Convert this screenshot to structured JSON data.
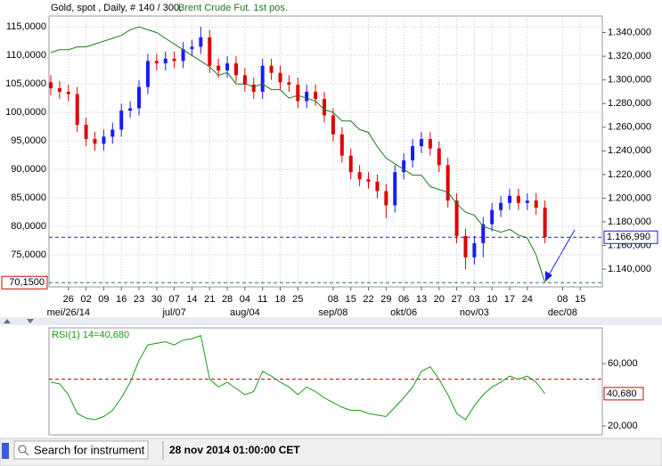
{
  "chart_data": [
    {
      "type": "candlestick",
      "title": "Gold, spot , Daily, # 140 / 300,",
      "x": [
        -1,
        -0.5,
        0,
        0.5,
        1,
        1.5,
        2,
        2.5,
        3,
        3.5,
        4,
        4.5,
        5,
        5.5,
        6,
        6.5,
        7,
        7.5,
        8,
        8.5,
        9,
        9.5,
        10,
        10.5,
        11,
        11.5,
        12,
        12.5,
        13,
        13.5,
        14,
        14.5,
        15,
        15.5,
        16,
        16.5,
        17,
        17.5,
        18,
        18.5,
        19,
        19.5,
        20,
        20.5,
        21,
        21.5,
        22,
        22.5,
        23,
        23.5,
        24,
        24.5,
        25,
        25.5,
        26,
        26.5,
        27
      ],
      "xlim": [
        -1.1,
        30.25
      ],
      "xticks": [
        {
          "value": 0,
          "label": "26"
        },
        {
          "value": 1,
          "label": "02"
        },
        {
          "value": 2,
          "label": "09"
        },
        {
          "value": 3,
          "label": "16"
        },
        {
          "value": 4,
          "label": "23"
        },
        {
          "value": 5,
          "label": "30"
        },
        {
          "value": 6,
          "label": "07"
        },
        {
          "value": 7,
          "label": "14"
        },
        {
          "value": 8,
          "label": "21"
        },
        {
          "value": 9,
          "label": "28"
        },
        {
          "value": 10,
          "label": "04"
        },
        {
          "value": 11,
          "label": "11"
        },
        {
          "value": 12,
          "label": "18"
        },
        {
          "value": 13,
          "label": "25"
        },
        {
          "value": 15,
          "label": "08"
        },
        {
          "value": 16,
          "label": "15"
        },
        {
          "value": 17,
          "label": "22"
        },
        {
          "value": 18,
          "label": "29"
        },
        {
          "value": 19,
          "label": "06"
        },
        {
          "value": 20,
          "label": "13"
        },
        {
          "value": 21,
          "label": "20"
        },
        {
          "value": 22,
          "label": "27"
        },
        {
          "value": 23,
          "label": "03"
        },
        {
          "value": 24,
          "label": "10"
        },
        {
          "value": 25,
          "label": "17"
        },
        {
          "value": 26,
          "label": "24"
        },
        {
          "value": 28,
          "label": "08"
        },
        {
          "value": 29,
          "label": "15"
        }
      ],
      "period_ticks": [
        {
          "value": 0,
          "label": "mei/26/14"
        },
        {
          "value": 6,
          "label": "jul/07"
        },
        {
          "value": 10,
          "label": "aug/04"
        },
        {
          "value": 15,
          "label": "sep/08"
        },
        {
          "value": 19,
          "label": "okt/06"
        },
        {
          "value": 23,
          "label": "nov/03"
        },
        {
          "value": 28,
          "label": "dec/08"
        }
      ],
      "ylim": [
        69.4,
        116.9
      ],
      "yticks": [
        {
          "value": 115,
          "label": "115,0000"
        },
        {
          "value": 110,
          "label": "110,0000"
        },
        {
          "value": 105,
          "label": "105,0000"
        },
        {
          "value": 100,
          "label": "100,0000"
        },
        {
          "value": 95,
          "label": "95,0000"
        },
        {
          "value": 90,
          "label": "90,0000"
        },
        {
          "value": 85,
          "label": "85,0000"
        },
        {
          "value": 80,
          "label": "80,0000"
        },
        {
          "value": 75,
          "label": "75,0000"
        }
      ],
      "y2lim": [
        1125,
        1354
      ],
      "y2ticks": [
        {
          "value": 1340,
          "label": "1.340,000"
        },
        {
          "value": 1320,
          "label": "1.320,000"
        },
        {
          "value": 1300,
          "label": "1.300,000"
        },
        {
          "value": 1280,
          "label": "1.280,000"
        },
        {
          "value": 1260,
          "label": "1.260,000"
        },
        {
          "value": 1240,
          "label": "1.240,000"
        },
        {
          "value": 1220,
          "label": "1.220,000"
        },
        {
          "value": 1200,
          "label": "1.200,000"
        },
        {
          "value": 1180,
          "label": "1.180,000"
        },
        {
          "value": 1160,
          "label": "1.160,000"
        },
        {
          "value": 1140,
          "label": "1.140,000"
        }
      ],
      "grid": true,
      "candles": {
        "axis": "y2",
        "up_color": "#1a1aff",
        "down_color": "#e00000",
        "last_color": "#1a1aff",
        "last_label": "1.166,990",
        "open": [
          1298,
          1293,
          1290,
          1288,
          1262,
          1250,
          1246,
          1252,
          1258,
          1274,
          1276,
          1294,
          1316,
          1314,
          1318,
          1316,
          1326,
          1328,
          1336,
          1312,
          1308,
          1314,
          1304,
          1296,
          1290,
          1312,
          1306,
          1298,
          1296,
          1282,
          1290,
          1284,
          1270,
          1254,
          1236,
          1222,
          1216,
          1214,
          1206,
          1194,
          1222,
          1232,
          1244,
          1250,
          1242,
          1228,
          1198,
          1168,
          1150,
          1162,
          1178,
          1190,
          1196,
          1202,
          1196,
          1198,
          1192
        ],
        "high": [
          1304,
          1299,
          1296,
          1294,
          1268,
          1256,
          1258,
          1264,
          1280,
          1282,
          1300,
          1322,
          1322,
          1324,
          1324,
          1332,
          1334,
          1345,
          1342,
          1318,
          1320,
          1320,
          1310,
          1302,
          1318,
          1318,
          1312,
          1304,
          1302,
          1296,
          1296,
          1290,
          1276,
          1260,
          1242,
          1228,
          1222,
          1220,
          1212,
          1228,
          1238,
          1250,
          1256,
          1256,
          1248,
          1234,
          1204,
          1174,
          1168,
          1184,
          1196,
          1202,
          1208,
          1208,
          1204,
          1204,
          1198
        ],
        "low": [
          1287,
          1284,
          1282,
          1256,
          1244,
          1240,
          1240,
          1246,
          1252,
          1268,
          1270,
          1288,
          1308,
          1308,
          1310,
          1310,
          1320,
          1322,
          1306,
          1302,
          1302,
          1298,
          1290,
          1284,
          1284,
          1300,
          1292,
          1290,
          1276,
          1276,
          1278,
          1264,
          1248,
          1230,
          1216,
          1210,
          1208,
          1200,
          1183,
          1188,
          1216,
          1226,
          1238,
          1236,
          1222,
          1192,
          1162,
          1140,
          1144,
          1150,
          1172,
          1184,
          1190,
          1190,
          1190,
          1186,
          1162
        ],
        "close": [
          1293,
          1290,
          1288,
          1262,
          1250,
          1246,
          1252,
          1258,
          1274,
          1276,
          1294,
          1316,
          1314,
          1318,
          1316,
          1326,
          1328,
          1336,
          1312,
          1308,
          1314,
          1304,
          1296,
          1290,
          1312,
          1306,
          1298,
          1296,
          1282,
          1290,
          1284,
          1270,
          1254,
          1236,
          1222,
          1216,
          1214,
          1206,
          1194,
          1222,
          1232,
          1244,
          1250,
          1242,
          1228,
          1198,
          1168,
          1150,
          1162,
          1178,
          1190,
          1196,
          1202,
          1196,
          1198,
          1192,
          1166.99
        ]
      },
      "line": {
        "name": "Brent Crude Fut. 1st pos.",
        "axis": "y",
        "color": "#1a7a1a",
        "last_color": "#e00000",
        "last_label": "70,1500",
        "values": [
          110.5,
          111,
          111,
          111.5,
          111.5,
          112,
          112.5,
          113,
          113.5,
          114.5,
          115,
          114.5,
          114,
          113,
          112,
          111,
          110,
          109,
          108,
          106.5,
          107,
          105,
          105,
          104.5,
          105,
          104,
          104,
          102.5,
          103,
          102.5,
          102,
          100.5,
          100,
          98.5,
          98.5,
          97,
          96.5,
          94,
          92,
          91,
          90,
          89,
          89,
          87,
          86.5,
          86,
          84,
          82.5,
          82,
          80,
          79.5,
          79,
          79.5,
          78.5,
          78,
          75,
          70.15
        ]
      }
    },
    {
      "type": "line",
      "title": "RSI(1) 14=40,680",
      "color": "#1a9a1a",
      "value_color": "#e00000",
      "x": [
        -1,
        -0.5,
        0,
        0.5,
        1,
        1.5,
        2,
        2.5,
        3,
        3.5,
        4,
        4.5,
        5,
        5.5,
        6,
        6.5,
        7,
        7.5,
        8,
        8.5,
        9,
        9.5,
        10,
        10.5,
        11,
        11.5,
        12,
        12.5,
        13,
        13.5,
        14,
        14.5,
        15,
        15.5,
        16,
        16.5,
        17,
        17.5,
        18,
        18.5,
        19,
        19.5,
        20,
        20.5,
        21,
        21.5,
        22,
        22.5,
        23,
        23.5,
        24,
        24.5,
        25,
        25.5,
        26,
        26.5,
        27
      ],
      "xlim": [
        -1.1,
        30.25
      ],
      "ylim": [
        14.3,
        82.9
      ],
      "yticks": [
        {
          "value": 60,
          "label": "60,000"
        },
        {
          "value": 20,
          "label": "20,000"
        }
      ],
      "reference_line": 50,
      "values": [
        48,
        47,
        40,
        28,
        25,
        24,
        26,
        30,
        38,
        48,
        62,
        72,
        73,
        74,
        72,
        75,
        76,
        78,
        50,
        45,
        48,
        44,
        40,
        42,
        55,
        52,
        48,
        45,
        40,
        45,
        42,
        38,
        35,
        32,
        30,
        30,
        28,
        27,
        26,
        32,
        38,
        45,
        55,
        58,
        50,
        40,
        28,
        24,
        33,
        40,
        45,
        48,
        52,
        50,
        52,
        48,
        40.68
      ],
      "last_label": "40,680"
    }
  ],
  "toolbar": {
    "search_placeholder": "Search for instrument",
    "timestamp": "28 nov 2014 01:00:00 CET"
  }
}
